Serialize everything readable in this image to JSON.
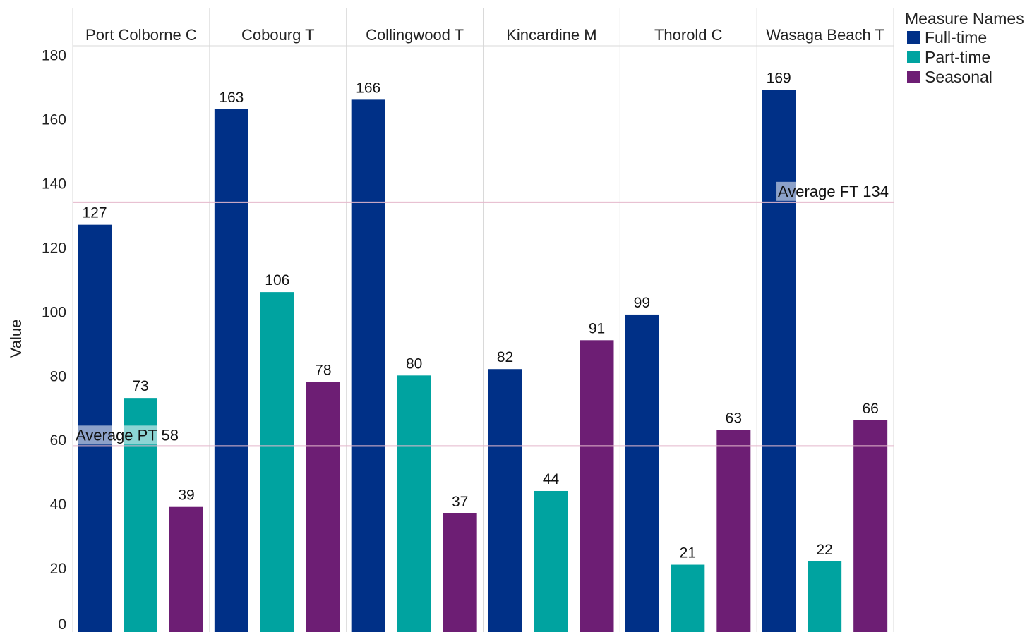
{
  "chart_data": {
    "type": "bar",
    "ylabel": "Value",
    "ylim": [
      0,
      180
    ],
    "y_ticks": [
      0,
      20,
      40,
      60,
      80,
      100,
      120,
      140,
      160,
      180
    ],
    "panels": [
      "Port Colborne C",
      "Cobourg T",
      "Collingwood T",
      "Kincardine M",
      "Thorold C",
      "Wasaga Beach T"
    ],
    "series": [
      {
        "name": "Full-time",
        "color": "#003087",
        "values": [
          127,
          163,
          166,
          82,
          99,
          169
        ]
      },
      {
        "name": "Part-time",
        "color": "#00A3A0",
        "values": [
          73,
          106,
          80,
          44,
          21,
          22
        ]
      },
      {
        "name": "Seasonal",
        "color": "#6D1E74",
        "values": [
          39,
          78,
          37,
          91,
          63,
          66
        ]
      }
    ],
    "legend_title": "Measure Names",
    "legend_position": "top-right",
    "reference_lines": [
      {
        "label": "Average FT 134",
        "value": 134,
        "color": "#E4B8CC",
        "label_position": "right"
      },
      {
        "label": "Average PT 58",
        "value": 58,
        "color": "#E4B8CC",
        "label_position": "left"
      }
    ]
  }
}
